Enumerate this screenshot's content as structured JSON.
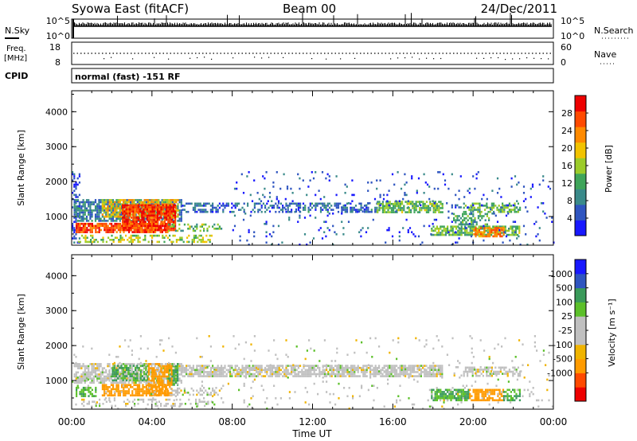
{
  "header": {
    "title": "Syowa East (fitACF)",
    "beam": "Beam 00",
    "date": "24/Dec/2011"
  },
  "noise_panel": {
    "left_label": "N.Sky",
    "right_label": "N.Search",
    "left_ticks": [
      "10^5",
      "10^0"
    ],
    "right_ticks": [
      "10^5",
      "10^0"
    ]
  },
  "freq_panel": {
    "left_label_line1": "Freq.",
    "left_label_line2": "[MHz]",
    "right_label": "Nave",
    "left_ticks": [
      "18",
      "8"
    ],
    "right_ticks": [
      "60",
      "0"
    ]
  },
  "cpid": {
    "label": "CPID",
    "text": "normal (fast) -151 RF"
  },
  "colors": {
    "power_scale": [
      "#1818ff",
      "#2f55c0",
      "#3a8a8a",
      "#3fa55a",
      "#9ccc2a",
      "#f2c300",
      "#ff8a00",
      "#ff4a00",
      "#ee0000"
    ],
    "velocity_scale": [
      "#ee0000",
      "#ff4a00",
      "#ff9b00",
      "#f0b400",
      "#c0c0c0",
      "#c0c0c0",
      "#5cc02a",
      "#3a9a5a",
      "#2f55c0",
      "#1818ff"
    ]
  },
  "chart_data": [
    {
      "type": "heatmap",
      "name": "power",
      "ylabel": "Slant Range [km]",
      "xlabel": "Time UT",
      "colorbar_label": "Power [dB]",
      "colorbar_ticks": [
        "28",
        "24",
        "20",
        "16",
        "12",
        "8",
        "4"
      ],
      "colorbar_range": [
        0,
        32
      ],
      "y_ticks": [
        "4000",
        "3000",
        "2000",
        "1000"
      ],
      "ylim": [
        180,
        4600
      ],
      "x_ticks": [
        "00:00",
        "04:00",
        "08:00",
        "12:00",
        "16:00",
        "20:00",
        "00:00"
      ],
      "xlim_hours": [
        0,
        24
      ],
      "echo_regions": [
        {
          "t0": 0.0,
          "t1": 0.4,
          "r0": 250,
          "r1": 2300,
          "v": 4,
          "density": 0.35
        },
        {
          "t0": 0.1,
          "t1": 5.5,
          "r0": 850,
          "r1": 1500,
          "v": 8,
          "density": 0.75
        },
        {
          "t0": 1.5,
          "t1": 5.3,
          "r0": 1000,
          "r1": 1500,
          "v": 20,
          "density": 0.7
        },
        {
          "t0": 2.5,
          "t1": 5.2,
          "r0": 620,
          "r1": 1350,
          "v": 28,
          "density": 0.85
        },
        {
          "t0": 0.2,
          "t1": 4.8,
          "r0": 580,
          "r1": 820,
          "v": 27,
          "density": 0.8
        },
        {
          "t0": 4.8,
          "t1": 7.5,
          "r0": 620,
          "r1": 800,
          "v": 14,
          "density": 0.45
        },
        {
          "t0": 0.3,
          "t1": 7.0,
          "r0": 250,
          "r1": 480,
          "v": 16,
          "density": 0.4
        },
        {
          "t0": 5.5,
          "t1": 11.5,
          "r0": 1150,
          "r1": 1400,
          "v": 6,
          "density": 0.45
        },
        {
          "t0": 11.5,
          "t1": 15.2,
          "r0": 1150,
          "r1": 1400,
          "v": 7,
          "density": 0.55
        },
        {
          "t0": 15.2,
          "t1": 18.5,
          "r0": 1150,
          "r1": 1450,
          "v": 14,
          "density": 0.7
        },
        {
          "t0": 19.5,
          "t1": 22.3,
          "r0": 1150,
          "r1": 1400,
          "v": 13,
          "density": 0.6
        },
        {
          "t0": 17.9,
          "t1": 22.3,
          "r0": 460,
          "r1": 740,
          "v": 14,
          "density": 0.75
        },
        {
          "t0": 20.0,
          "t1": 21.5,
          "r0": 460,
          "r1": 700,
          "v": 24,
          "density": 0.7
        },
        {
          "t0": 19.0,
          "t1": 20.8,
          "r0": 780,
          "r1": 1100,
          "v": 12,
          "density": 0.5
        },
        {
          "t0": 8.0,
          "t1": 24.0,
          "r0": 200,
          "r1": 2300,
          "v": 5,
          "density": 0.05
        }
      ]
    },
    {
      "type": "heatmap",
      "name": "velocity",
      "ylabel": "Slant Range [km]",
      "xlabel": "Time UT",
      "colorbar_label": "Velocity [m s⁻¹]",
      "colorbar_ticks": [
        "1000",
        "500",
        "100",
        "25",
        "-25",
        "-100",
        "-500",
        "-1000"
      ],
      "y_ticks": [
        "4000",
        "3000",
        "2000",
        "1000"
      ],
      "ylim": [
        180,
        4600
      ],
      "x_ticks": [
        "00:00",
        "04:00",
        "08:00",
        "12:00",
        "16:00",
        "20:00",
        "00:00"
      ],
      "xlim_hours": [
        0,
        24
      ],
      "echo_regions": [
        {
          "t0": 0.1,
          "t1": 5.5,
          "r0": 950,
          "r1": 1500,
          "v": 0,
          "density": 0.7
        },
        {
          "t0": 2.0,
          "t1": 3.8,
          "r0": 1000,
          "r1": 1450,
          "v": 100,
          "density": 0.6
        },
        {
          "t0": 4.8,
          "t1": 5.3,
          "r0": 900,
          "r1": 1500,
          "v": 100,
          "density": 0.7
        },
        {
          "t0": 1.5,
          "t1": 4.8,
          "r0": 580,
          "r1": 900,
          "v": -150,
          "density": 0.75
        },
        {
          "t0": 3.8,
          "t1": 5.0,
          "r0": 600,
          "r1": 1500,
          "v": -200,
          "density": 0.7
        },
        {
          "t0": 0.2,
          "t1": 1.2,
          "r0": 560,
          "r1": 820,
          "v": 80,
          "density": 0.6
        },
        {
          "t0": 4.8,
          "t1": 7.5,
          "r0": 600,
          "r1": 800,
          "v": 0,
          "density": 0.5
        },
        {
          "t0": 0.3,
          "t1": 7.0,
          "r0": 250,
          "r1": 480,
          "v": 0,
          "density": 0.3
        },
        {
          "t0": 5.5,
          "t1": 18.5,
          "r0": 1150,
          "r1": 1450,
          "v": 0,
          "density": 0.75
        },
        {
          "t0": 19.5,
          "t1": 22.3,
          "r0": 1150,
          "r1": 1400,
          "v": 0,
          "density": 0.6
        },
        {
          "t0": 17.9,
          "t1": 19.8,
          "r0": 460,
          "r1": 760,
          "v": 100,
          "density": 0.75
        },
        {
          "t0": 19.8,
          "t1": 21.5,
          "r0": 460,
          "r1": 760,
          "v": -150,
          "density": 0.7
        },
        {
          "t0": 21.5,
          "t1": 22.3,
          "r0": 460,
          "r1": 760,
          "v": 100,
          "density": 0.65
        },
        {
          "t0": 0.0,
          "t1": 24.0,
          "r0": 200,
          "r1": 2300,
          "v": 0,
          "density": 0.04
        }
      ]
    }
  ]
}
